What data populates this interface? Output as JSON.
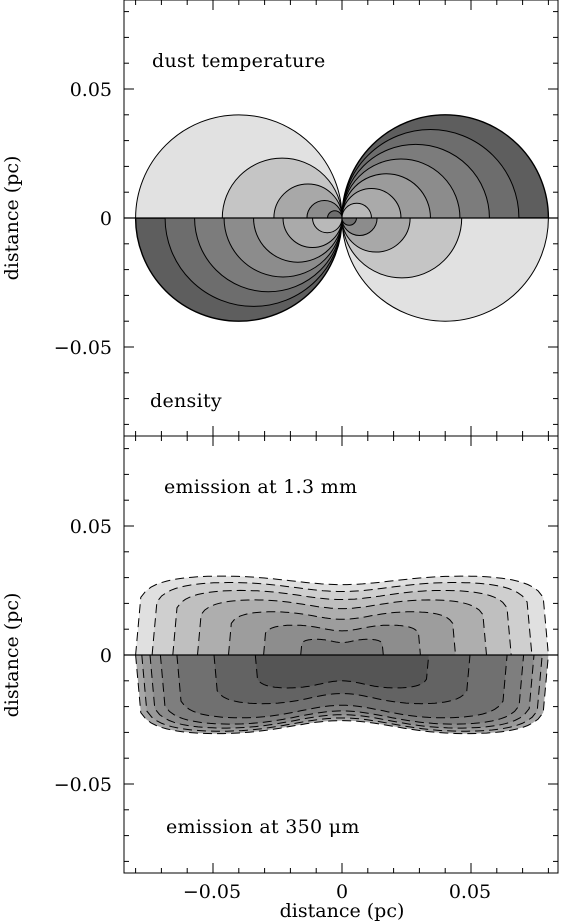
{
  "chart_data": [
    {
      "type": "contour",
      "panel": "top",
      "ylabel": "distance (pc)",
      "ylim": [
        -0.085,
        0.085
      ],
      "xlim": [
        -0.085,
        0.085
      ],
      "yticks": [
        {
          "value": 0.05,
          "label": "0.05"
        },
        {
          "value": 0.0,
          "label": "0"
        },
        {
          "value": -0.05,
          "label": "−0.05"
        }
      ],
      "annotations": {
        "upper": "dust temperature",
        "lower": "density"
      },
      "lobe_radius_pc": 0.08,
      "upper_levels": 7,
      "lower_levels": 5,
      "colors": {
        "upper_dark": "#5e5e5e",
        "upper_light": "#b9b9b9",
        "lower_dark": "#6f6f6f",
        "lower_light": "#e1e1e1"
      }
    },
    {
      "type": "contour",
      "panel": "bottom",
      "xlabel": "distance (pc)",
      "ylabel": "distance (pc)",
      "ylim": [
        -0.085,
        0.085
      ],
      "xlim": [
        -0.085,
        0.085
      ],
      "xticks": [
        {
          "value": -0.05,
          "label": "−0.05"
        },
        {
          "value": 0.0,
          "label": "0"
        },
        {
          "value": 0.05,
          "label": "0.05"
        }
      ],
      "yticks": [
        {
          "value": 0.05,
          "label": "0.05"
        },
        {
          "value": 0.0,
          "label": "0"
        },
        {
          "value": -0.05,
          "label": "−0.05"
        }
      ],
      "annotations": {
        "upper": "emission at 1.3 mm",
        "lower": "emission at 350 μm"
      },
      "half_width_pc": 0.08,
      "half_height_pc": 0.031,
      "upper_levels": 7,
      "lower_levels": 7,
      "colors": {
        "upper_light": "#e0e0e0",
        "upper_dark": "#7c7c7c",
        "lower_light": "#a6a6a6",
        "lower_dark": "#555555"
      }
    }
  ]
}
